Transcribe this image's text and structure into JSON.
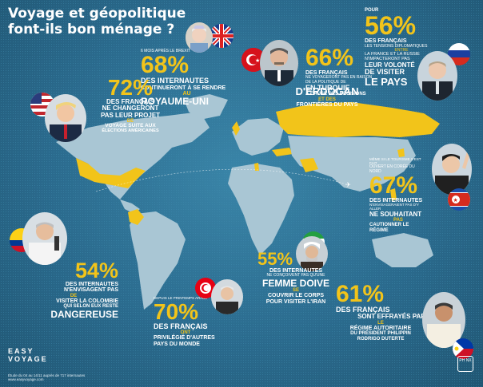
{
  "title": {
    "line1": "Voyage et géopolitique",
    "line2": "font-ils bon ménage ?"
  },
  "colors": {
    "ocean": "#2b6b8e",
    "land": "#a9c6d4",
    "highlight": "#f2c41a",
    "text": "#ffffff"
  },
  "uk": {
    "kicker": "6 mois après le brexit",
    "percent": "68%",
    "line1": "des internautes",
    "line2": "continueront à se rendre",
    "line3": "au",
    "emph": "Royaume-Uni",
    "flag_icon": "uk-flag-icon",
    "photo_icon": "queen-elizabeth-portrait"
  },
  "turkey": {
    "percent": "66%",
    "kicker1": "des français",
    "kicker2": "ne voyageront pas en raison",
    "kicker3": "de la politique de",
    "line2": "en Turquie",
    "line3": "à cause des décisions",
    "emph": "d'Erdogan",
    "line4": "et des",
    "line5": "frontières du pays",
    "flag_icon": "turkey-flag-icon",
    "photo_icon": "erdogan-portrait"
  },
  "russia": {
    "kicker": "pour",
    "percent": "56%",
    "line1": "des français",
    "line2": "les tensions diplomatiques",
    "line3": "entre",
    "line4": "la France et la Russie",
    "line5": "n'impacteront pas",
    "line6": "leur volonté",
    "line7": "de visiter",
    "emph": "le pays",
    "flag_icon": "russia-flag-icon",
    "photo_icon": "putin-portrait"
  },
  "usa": {
    "percent": "72%",
    "line1": "des français",
    "line2": "ne changeront",
    "line3": "pas leur projet",
    "line4": "de",
    "line5": "voyage suite aux",
    "line6": "élections américaines",
    "flag_icon": "usa-flag-icon",
    "photo_icon": "trump-portrait"
  },
  "northkorea": {
    "kicker1": "même si le tourisme s'est fait",
    "kicker2": "ouvert en corée du nord",
    "percent": "67%",
    "line1": "des internautes",
    "line2": "n'envisageraient pas d'y aller",
    "line3": "ne souhaitant",
    "line4": "pas",
    "emph": "cautionner le régime",
    "flag_icon": "north-korea-flag-icon",
    "photo_icon": "kim-jong-un-portrait"
  },
  "colombia": {
    "percent": "54%",
    "line1": "des internautes",
    "line2": "n'envisagent pas",
    "line3": "de",
    "line4": "visiter la Colombie",
    "line5": "qui selon eux reste",
    "emph": "dangereuse",
    "flag_icon": "colombia-flag-icon",
    "photo_icon": "santos-portrait"
  },
  "iran": {
    "percent": "55%",
    "line1": "des internautes",
    "line2": "ne conçoivent pas qu'une",
    "emph": "femme doive",
    "line3": "se",
    "line4": "couvrir le corps",
    "line5": "pour visiter l'Iran",
    "flag_icon": "iran-flag-icon",
    "photo_icon": "rohani-portrait"
  },
  "tunisia": {
    "kicker": "depuis le printemps arabe",
    "percent": "70%",
    "line1": "des français",
    "line2": "ont",
    "line3": "privilégié d'autres",
    "line4": "pays du monde",
    "flag_icon": "tunisia-flag-icon",
    "photo_icon": "essebsi-portrait"
  },
  "philippines": {
    "percent": "61%",
    "line1": "des français",
    "line2": "sont effrayés par",
    "line3": "le",
    "line4": "régime autoritaire",
    "line5": "du président philippin",
    "line6": "Rodrigo Duterte",
    "flag_icon": "philippines-flag-icon",
    "photo_icon": "duterte-portrait"
  },
  "footer": {
    "brand1": "EASY",
    "brand2": "VOYAGE",
    "credit1": "Étude du 04 au 14/11 auprès de 717 internautes",
    "credit2": "www.easyvoyage.com",
    "badge": "PH NX"
  }
}
